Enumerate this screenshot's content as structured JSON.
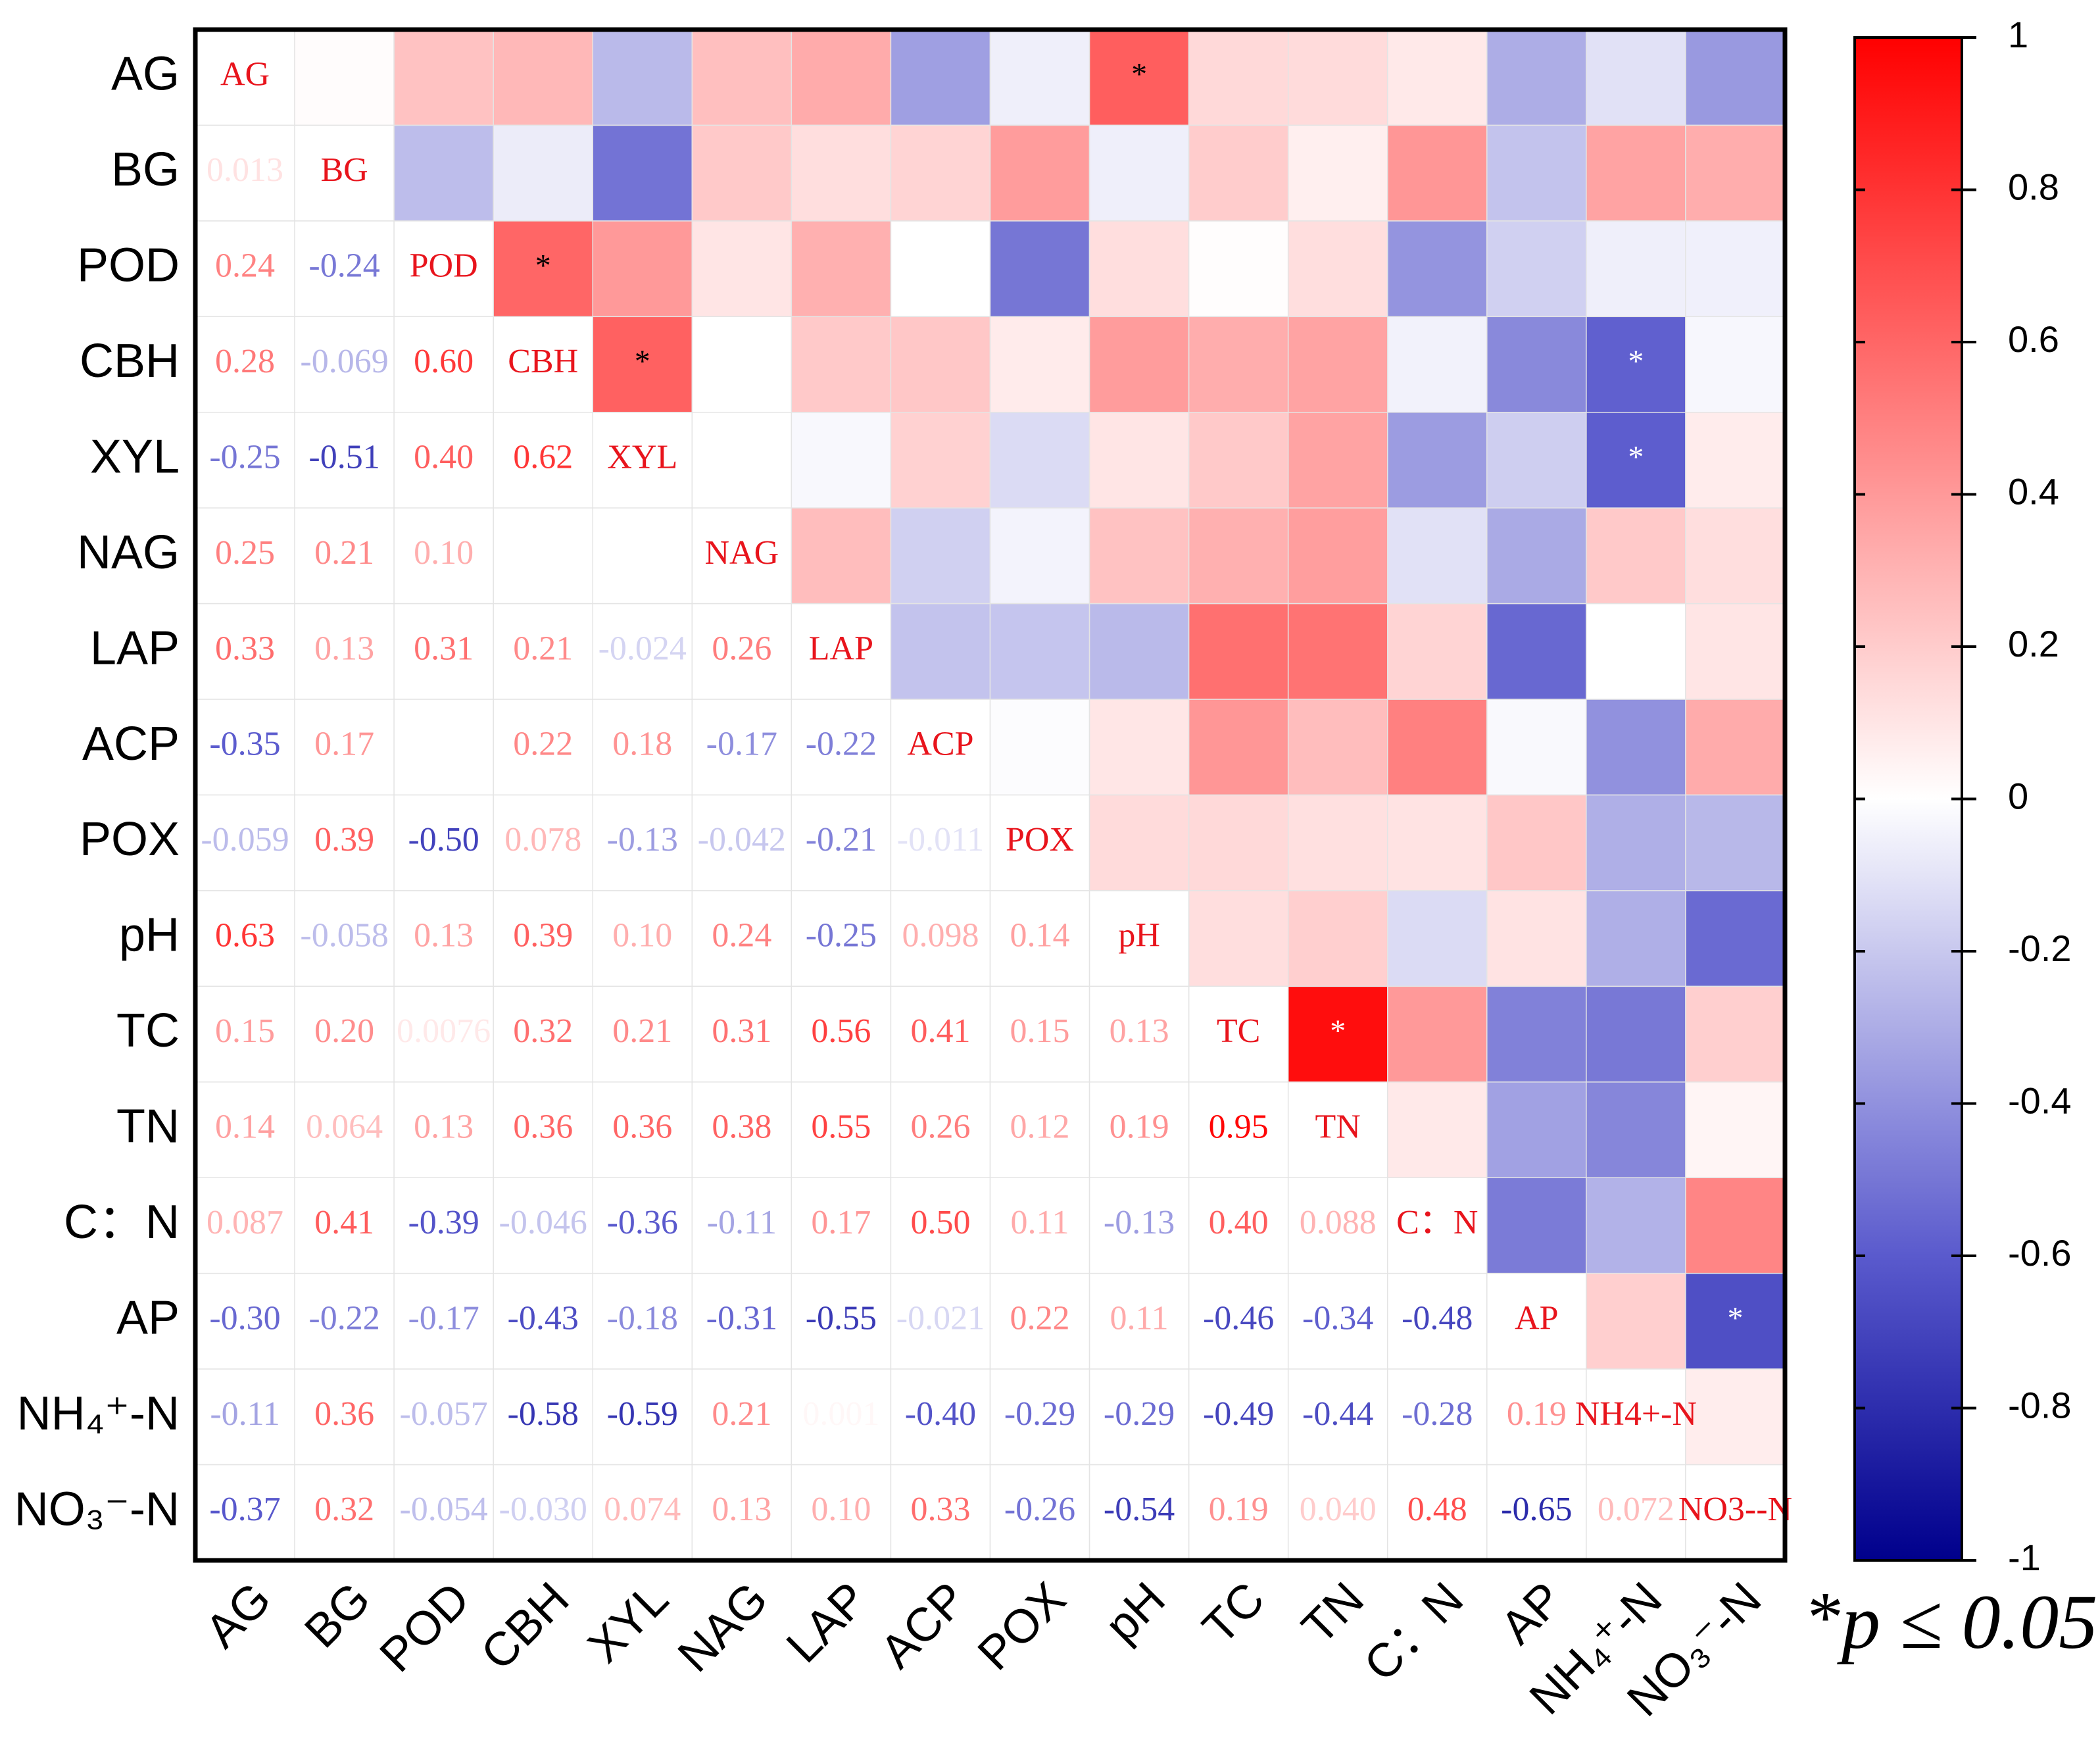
{
  "chart_data": {
    "type": "heatmap",
    "categories": [
      "AG",
      "BG",
      "POD",
      "CBH",
      "XYL",
      "NAG",
      "LAP",
      "ACP",
      "POX",
      "pH",
      "TC",
      "TN",
      "C：N",
      "AP",
      "NH₄⁺-N",
      "NO₃⁻-N"
    ],
    "diagonal_labels": [
      "AG",
      "BG",
      "POD",
      "CBH",
      "XYL",
      "NAG",
      "LAP",
      "ACP",
      "POX",
      "pH",
      "TC",
      "TN",
      "C：N",
      "AP",
      "NH4+-N",
      "NO3--N"
    ],
    "values": [
      [],
      [
        0.013
      ],
      [
        0.24,
        -0.24
      ],
      [
        0.28,
        -0.069,
        0.6
      ],
      [
        -0.25,
        -0.51,
        0.4,
        0.62
      ],
      [
        0.25,
        0.21,
        0.1,
        null,
        null
      ],
      [
        0.33,
        0.13,
        0.31,
        0.21,
        -0.024,
        0.26
      ],
      [
        -0.35,
        0.17,
        null,
        0.22,
        0.18,
        -0.17,
        -0.22
      ],
      [
        -0.059,
        0.39,
        -0.5,
        0.078,
        -0.13,
        -0.042,
        -0.21,
        -0.011
      ],
      [
        0.63,
        -0.058,
        0.13,
        0.39,
        0.1,
        0.24,
        -0.25,
        0.098,
        0.14
      ],
      [
        0.15,
        0.2,
        0.0076,
        0.32,
        0.21,
        0.31,
        0.56,
        0.41,
        0.15,
        0.13
      ],
      [
        0.14,
        0.064,
        0.13,
        0.36,
        0.36,
        0.38,
        0.55,
        0.26,
        0.12,
        0.19,
        0.95
      ],
      [
        0.087,
        0.41,
        -0.39,
        -0.046,
        -0.36,
        -0.11,
        0.17,
        0.5,
        0.11,
        -0.13,
        0.4,
        0.088
      ],
      [
        -0.3,
        -0.22,
        -0.17,
        -0.43,
        -0.18,
        -0.31,
        -0.55,
        -0.021,
        0.22,
        0.11,
        -0.46,
        -0.34,
        -0.48
      ],
      [
        -0.11,
        0.36,
        -0.057,
        -0.58,
        -0.59,
        0.21,
        0.001,
        -0.4,
        -0.29,
        -0.29,
        -0.49,
        -0.44,
        -0.28,
        0.19
      ],
      [
        -0.37,
        0.32,
        -0.054,
        -0.03,
        0.074,
        0.13,
        0.1,
        0.33,
        -0.26,
        -0.54,
        0.19,
        0.04,
        0.48,
        -0.65,
        0.072
      ]
    ],
    "value_labels": [
      [],
      [
        "0.013"
      ],
      [
        "0.24",
        "-0.24"
      ],
      [
        "0.28",
        "-0.069",
        "0.60"
      ],
      [
        "-0.25",
        "-0.51",
        "0.40",
        "0.62"
      ],
      [
        "0.25",
        "0.21",
        "0.10",
        null,
        null
      ],
      [
        "0.33",
        "0.13",
        "0.31",
        "0.21",
        "-0.024",
        "0.26"
      ],
      [
        "-0.35",
        "0.17",
        null,
        "0.22",
        "0.18",
        "-0.17",
        "-0.22"
      ],
      [
        "-0.059",
        "0.39",
        "-0.50",
        "0.078",
        "-0.13",
        "-0.042",
        "-0.21",
        "-0.011"
      ],
      [
        "0.63",
        "-0.058",
        "0.13",
        "0.39",
        "0.10",
        "0.24",
        "-0.25",
        "0.098",
        "0.14"
      ],
      [
        "0.15",
        "0.20",
        "0.0076",
        "0.32",
        "0.21",
        "0.31",
        "0.56",
        "0.41",
        "0.15",
        "0.13"
      ],
      [
        "0.14",
        "0.064",
        "0.13",
        "0.36",
        "0.36",
        "0.38",
        "0.55",
        "0.26",
        "0.12",
        "0.19",
        "0.95"
      ],
      [
        "0.087",
        "0.41",
        "-0.39",
        "-0.046",
        "-0.36",
        "-0.11",
        "0.17",
        "0.50",
        "0.11",
        "-0.13",
        "0.40",
        "0.088"
      ],
      [
        "-0.30",
        "-0.22",
        "-0.17",
        "-0.43",
        "-0.18",
        "-0.31",
        "-0.55",
        "-0.021",
        "0.22",
        "0.11",
        "-0.46",
        "-0.34",
        "-0.48"
      ],
      [
        "-0.11",
        "0.36",
        "-0.057",
        "-0.58",
        "-0.59",
        "0.21",
        "0.001",
        "-0.40",
        "-0.29",
        "-0.29",
        "-0.49",
        "-0.44",
        "-0.28",
        "0.19"
      ],
      [
        "-0.37",
        "0.32",
        "-0.054",
        "-0.030",
        "0.074",
        "0.13",
        "0.10",
        "0.33",
        "-0.26",
        "-0.54",
        "0.19",
        "0.040",
        "0.48",
        "-0.65",
        "0.072"
      ]
    ],
    "significant": [
      [
        9,
        0
      ],
      [
        3,
        2
      ],
      [
        4,
        3
      ],
      [
        14,
        3
      ],
      [
        14,
        4
      ],
      [
        11,
        10
      ],
      [
        15,
        13
      ]
    ],
    "significance_marker": "*",
    "significance_note": "p ≤ 0.05",
    "clim": [
      -1,
      1
    ],
    "cticks": [
      1,
      0.8,
      0.6,
      0.4,
      0.2,
      0,
      -0.2,
      -0.4,
      -0.6,
      -0.8,
      -1
    ]
  }
}
